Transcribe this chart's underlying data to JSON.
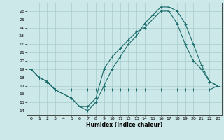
{
  "title": "",
  "xlabel": "Humidex (Indice chaleur)",
  "xlim": [
    -0.5,
    23.5
  ],
  "ylim": [
    13.5,
    27
  ],
  "yticks": [
    14,
    15,
    16,
    17,
    18,
    19,
    20,
    21,
    22,
    23,
    24,
    25,
    26
  ],
  "xticks": [
    0,
    1,
    2,
    3,
    4,
    5,
    6,
    7,
    8,
    9,
    10,
    11,
    12,
    13,
    14,
    15,
    16,
    17,
    18,
    19,
    20,
    21,
    22,
    23
  ],
  "background_color": "#cce8e8",
  "grid_color": "#a8cccc",
  "line_color": "#1a6b6b",
  "line1_x": [
    0,
    1,
    2,
    3,
    4,
    5,
    6,
    7,
    8,
    9,
    10,
    11,
    12,
    13,
    14,
    15,
    16,
    17,
    18,
    19,
    20,
    21,
    22,
    23
  ],
  "line1_y": [
    19,
    18,
    17.5,
    16.5,
    16,
    15.5,
    14.5,
    14,
    15,
    17,
    19,
    20.5,
    22,
    23,
    24.5,
    25.5,
    26.5,
    26.5,
    26,
    24.5,
    22,
    19.5,
    17.5,
    17
  ],
  "line2_x": [
    0,
    1,
    2,
    3,
    4,
    5,
    6,
    7,
    8,
    9,
    10,
    11,
    12,
    13,
    14,
    15,
    16,
    17,
    18,
    19,
    20,
    21,
    22,
    23
  ],
  "line2_y": [
    19,
    18,
    17.5,
    16.5,
    16.5,
    16.5,
    16.5,
    16.5,
    16.5,
    16.5,
    16.5,
    16.5,
    16.5,
    16.5,
    16.5,
    16.5,
    16.5,
    16.5,
    16.5,
    16.5,
    16.5,
    16.5,
    16.5,
    17
  ],
  "line3_x": [
    0,
    1,
    2,
    3,
    4,
    5,
    6,
    7,
    8,
    9,
    10,
    11,
    12,
    13,
    14,
    15,
    16,
    17,
    18,
    19,
    20,
    21,
    22,
    23
  ],
  "line3_y": [
    19,
    18,
    17.5,
    16.5,
    16,
    15.5,
    14.5,
    14.5,
    15.5,
    19,
    20.5,
    21.5,
    22.5,
    23.5,
    24,
    25,
    26,
    26,
    24.5,
    22,
    20,
    19,
    17.5,
    17
  ]
}
